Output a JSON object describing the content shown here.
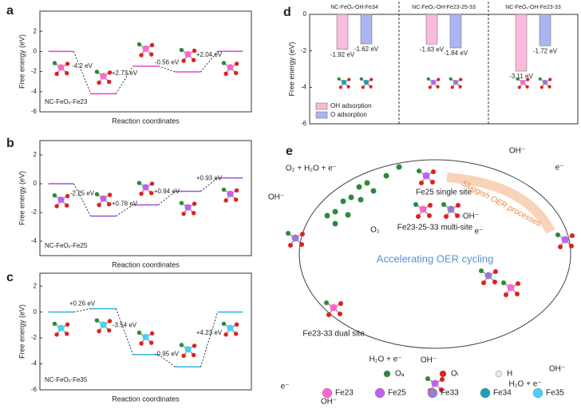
{
  "chart_data": [
    {
      "type": "energy",
      "label": "a",
      "name": "NC-FeOₓ-Fe23",
      "color": "#e840dc",
      "values": [
        0,
        -4.2,
        -1.47,
        -2.03,
        0.01
      ],
      "annotations": [
        "-4.2 eV",
        "+2.73 eV",
        "-0.56 eV",
        "+2.04 eV"
      ],
      "xlabel": "Reaction coordinates",
      "ylabel": "Free energy (eV)",
      "ylim": [
        -6,
        4
      ],
      "yticks": [
        -6,
        -4,
        -2,
        0,
        2
      ]
    },
    {
      "type": "energy",
      "label": "b",
      "name": "NC-FeOₓ-Fe25",
      "color": "#a24fe0",
      "values": [
        0,
        -2.25,
        -1.47,
        -0.53,
        0.4
      ],
      "annotations": [
        "-2.25 eV",
        "+0.78 eV",
        "+0.94 eV",
        "+0.93 eV"
      ],
      "xlabel": "Reaction coordinates",
      "ylabel": "Free energy (eV)",
      "ylim": [
        -5,
        3
      ],
      "yticks": [
        -4,
        -2,
        0,
        2
      ]
    },
    {
      "type": "energy",
      "label": "c",
      "name": "NC-FeOₓ-Fe35",
      "color": "#2cb4e4",
      "values": [
        0,
        0.26,
        -3.28,
        -4.23,
        0
      ],
      "annotations": [
        "+0.26 eV",
        "-3.54 eV",
        "-0.95 eV",
        "+4.23 eV"
      ],
      "xlabel": "Reaction coordinates",
      "ylabel": "Free energy (eV)",
      "ylim": [
        -6,
        3
      ],
      "yticks": [
        -6,
        -4,
        -2,
        0,
        2
      ]
    },
    {
      "type": "bar",
      "label": "d",
      "categories": [
        "NC-FeOₓ-OH-Fe34",
        "NC-FeOₓ-OH-Fe23-25-33",
        "NC-FeOₓ-OH-Fe23-33"
      ],
      "series": [
        {
          "name": "OH adsorption",
          "color": "#f9bcdc",
          "values": [
            -1.92,
            -1.63,
            -3.11
          ],
          "value_labels": [
            "-1.92 eV",
            "-1.63 eV",
            "-3.11 eV"
          ]
        },
        {
          "name": "O  adsorption",
          "color": "#aab6f0",
          "values": [
            -1.62,
            -1.84,
            -1.72
          ],
          "value_labels": [
            "-1.62 eV",
            "-1.84 eV",
            "-1.72 eV"
          ]
        }
      ],
      "ylabel": "Free energy (eV)",
      "ylim": [
        -6,
        0
      ],
      "yticks": [
        -6,
        -4,
        -2,
        0
      ],
      "legend": "lower left"
    }
  ],
  "diagram": {
    "label": "e",
    "sites": [
      "Fe25 single site",
      "Fe23-25-33 multi-site",
      "Fe23-33 dual site"
    ],
    "center": "Accelerating OER cycling",
    "sluggish": "Sluggish OER processes",
    "species": [
      "O₂ + H₂O + e⁻",
      "OH⁻",
      "O₂",
      "OH⁻",
      "e⁻",
      "OH⁻",
      "e⁻",
      "H₂O + e⁻",
      "OH⁻",
      "e⁻",
      "OH⁻",
      "OH⁻",
      "H₂O + e⁻"
    ],
    "legend": [
      {
        "name": "Oₐ",
        "color": "#2b8a3a"
      },
      {
        "name": "Oₗ",
        "color": "#e02020"
      },
      {
        "name": "H",
        "color": "#e8e8e8"
      },
      {
        "name": "Fe23",
        "color": "#ff66cc"
      },
      {
        "name": "Fe25",
        "color": "#c060f0"
      },
      {
        "name": "Fe33",
        "color": "#9a7ad0"
      },
      {
        "name": "Fe34",
        "color": "#1a9fb8"
      },
      {
        "name": "Fe35",
        "color": "#45d2f5"
      }
    ]
  }
}
